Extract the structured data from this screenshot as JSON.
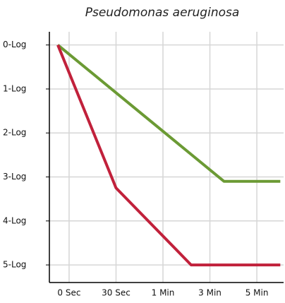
{
  "chart_data": {
    "type": "line",
    "title": "Pseudomonas aeruginosa",
    "xlim": [
      -0.42,
      4.57
    ],
    "xticks": [
      {
        "value": 0,
        "label": "0 Sec"
      },
      {
        "value": 1,
        "label": "30 Sec"
      },
      {
        "value": 2,
        "label": "1 Min"
      },
      {
        "value": 3,
        "label": "3 Min"
      },
      {
        "value": 4,
        "label": "5 Min"
      }
    ],
    "ylim": [
      5.4,
      -0.3
    ],
    "yticks": [
      {
        "value": 0,
        "label": "0-Log"
      },
      {
        "value": 1,
        "label": "1-Log"
      },
      {
        "value": 2,
        "label": "2-Log"
      },
      {
        "value": 3,
        "label": "3-Log"
      },
      {
        "value": 4,
        "label": "4-Log"
      },
      {
        "value": 5,
        "label": "5-Log"
      }
    ],
    "grid": true,
    "series": [
      {
        "color": "#6b9a34",
        "x": [
          -0.24,
          3.3,
          4.5
        ],
        "values": [
          0,
          3.1,
          3.1
        ]
      },
      {
        "color": "#c1213b",
        "x": [
          -0.24,
          1.0,
          2.6,
          4.5
        ],
        "values": [
          0,
          3.25,
          5,
          5
        ]
      }
    ]
  }
}
